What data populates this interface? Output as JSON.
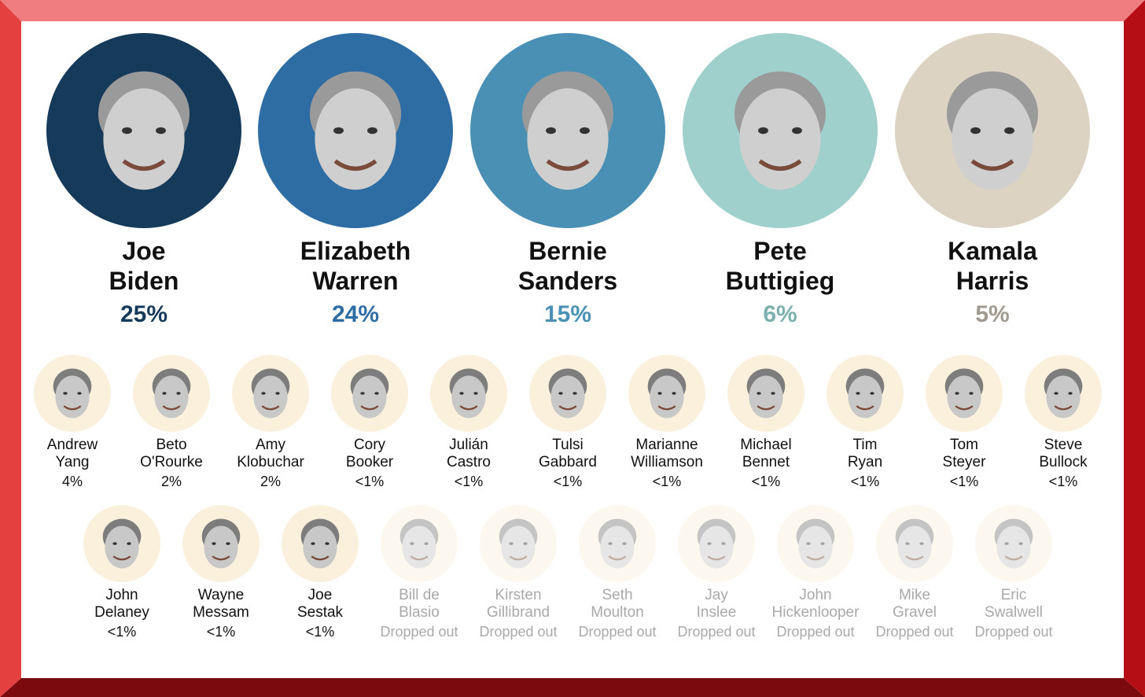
{
  "colors": {
    "biden": "#163a5a",
    "warren": "#2e6da4",
    "sanders": "#4a90b5",
    "buttigieg": "#9fd0cb",
    "harris": "#ddd3c3",
    "minor_circle": "#fbf0dc",
    "dropped_text": "#a9a9a9"
  },
  "leaders": [
    {
      "first": "Joe",
      "last": "Biden",
      "pct": "25%",
      "pct_color": "#163a5a",
      "bg": "#163a5a",
      "icon": "candidate-photo-icon"
    },
    {
      "first": "Elizabeth",
      "last": "Warren",
      "pct": "24%",
      "pct_color": "#2e6da4",
      "bg": "#2e6da4",
      "icon": "candidate-photo-icon"
    },
    {
      "first": "Bernie",
      "last": "Sanders",
      "pct": "15%",
      "pct_color": "#4a90b5",
      "bg": "#4a90b5",
      "icon": "candidate-photo-icon"
    },
    {
      "first": "Pete",
      "last": "Buttigieg",
      "pct": "6%",
      "pct_color": "#7ab0ad",
      "bg": "#9fd0cb",
      "icon": "candidate-photo-icon"
    },
    {
      "first": "Kamala",
      "last": "Harris",
      "pct": "5%",
      "pct_color": "#a09a90",
      "bg": "#ddd3c3",
      "icon": "candidate-photo-icon"
    }
  ],
  "row1": [
    {
      "first": "Andrew",
      "last": "Yang",
      "pct": "4%"
    },
    {
      "first": "Beto",
      "last": "O'Rourke",
      "pct": "2%"
    },
    {
      "first": "Amy",
      "last": "Klobuchar",
      "pct": "2%"
    },
    {
      "first": "Cory",
      "last": "Booker",
      "pct": "<1%"
    },
    {
      "first": "Julián",
      "last": "Castro",
      "pct": "<1%"
    },
    {
      "first": "Tulsi",
      "last": "Gabbard",
      "pct": "<1%"
    },
    {
      "first": "Marianne",
      "last": "Williamson",
      "pct": "<1%"
    },
    {
      "first": "Michael",
      "last": "Bennet",
      "pct": "<1%"
    },
    {
      "first": "Tim",
      "last": "Ryan",
      "pct": "<1%"
    },
    {
      "first": "Tom",
      "last": "Steyer",
      "pct": "<1%"
    },
    {
      "first": "Steve",
      "last": "Bullock",
      "pct": "<1%"
    }
  ],
  "row2": [
    {
      "first": "John",
      "last": "Delaney",
      "pct": "<1%",
      "dropped": false
    },
    {
      "first": "Wayne",
      "last": "Messam",
      "pct": "<1%",
      "dropped": false
    },
    {
      "first": "Joe",
      "last": "Sestak",
      "pct": "<1%",
      "dropped": false
    },
    {
      "first": "Bill de",
      "last": "Blasio",
      "pct": "Dropped out",
      "dropped": true
    },
    {
      "first": "Kirsten",
      "last": "Gillibrand",
      "pct": "Dropped out",
      "dropped": true
    },
    {
      "first": "Seth",
      "last": "Moulton",
      "pct": "Dropped out",
      "dropped": true
    },
    {
      "first": "Jay",
      "last": "Inslee",
      "pct": "Dropped out",
      "dropped": true
    },
    {
      "first": "John",
      "last": "Hickenlooper",
      "pct": "Dropped out",
      "dropped": true
    },
    {
      "first": "Mike",
      "last": "Gravel",
      "pct": "Dropped out",
      "dropped": true
    },
    {
      "first": "Eric",
      "last": "Swalwell",
      "pct": "Dropped out",
      "dropped": true
    }
  ]
}
